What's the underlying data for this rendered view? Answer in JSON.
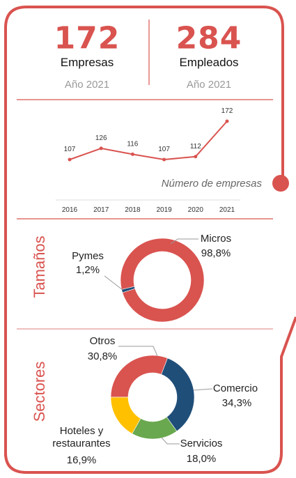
{
  "stats": [
    {
      "value": 172,
      "label": "Empresas",
      "sub": "Año 2021"
    },
    {
      "value": 284,
      "label": "Empleados",
      "sub": "Año 2021"
    }
  ],
  "chart_data": [
    {
      "type": "line",
      "title": "Número de empresas",
      "categories": [
        "2016",
        "2017",
        "2018",
        "2019",
        "2020",
        "2021"
      ],
      "values": [
        107,
        126,
        116,
        107,
        112,
        172
      ],
      "color": "#d9534f"
    },
    {
      "type": "donut",
      "title": "Tamaños",
      "categories": [
        "Micros",
        "Pymes"
      ],
      "values": [
        98.8,
        1.2
      ],
      "value_labels": [
        "98,8%",
        "1,2%"
      ],
      "colors": [
        "#d9534f",
        "#1f4e79"
      ]
    },
    {
      "type": "donut",
      "title": "Sectores",
      "categories": [
        "Comercio",
        "Servicios",
        "Hoteles y restaurantes",
        "Otros"
      ],
      "values": [
        34.3,
        18.0,
        16.9,
        30.8
      ],
      "value_labels": [
        "34,3%",
        "18,0%",
        "16,9%",
        "30,8%"
      ],
      "colors": [
        "#1f4e79",
        "#6aa84f",
        "#ffc000",
        "#d9534f"
      ]
    }
  ]
}
